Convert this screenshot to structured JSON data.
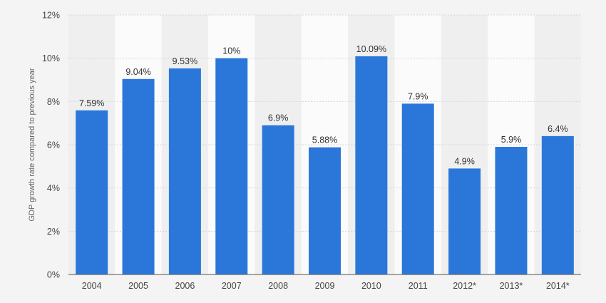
{
  "chart_data": {
    "type": "bar",
    "title": "",
    "xlabel": "",
    "ylabel": "GDP growth rate compared to previous year",
    "ylim": [
      0,
      12
    ],
    "y_ticks": [
      "0%",
      "2%",
      "4%",
      "6%",
      "8%",
      "10%",
      "12%"
    ],
    "y_tick_values": [
      0,
      2,
      4,
      6,
      8,
      10,
      12
    ],
    "categories": [
      "2004",
      "2005",
      "2006",
      "2007",
      "2008",
      "2009",
      "2010",
      "2011",
      "2012*",
      "2013*",
      "2014*"
    ],
    "values": [
      7.59,
      9.04,
      9.53,
      10,
      6.9,
      5.88,
      10.09,
      7.9,
      4.9,
      5.9,
      6.4
    ],
    "data_labels": [
      "7.59%",
      "9.04%",
      "9.53%",
      "10%",
      "6.9%",
      "5.88%",
      "10.09%",
      "7.9%",
      "4.9%",
      "5.9%",
      "6.4%"
    ],
    "bar_color": "#2a77d9",
    "grid": true,
    "legend": "none"
  }
}
